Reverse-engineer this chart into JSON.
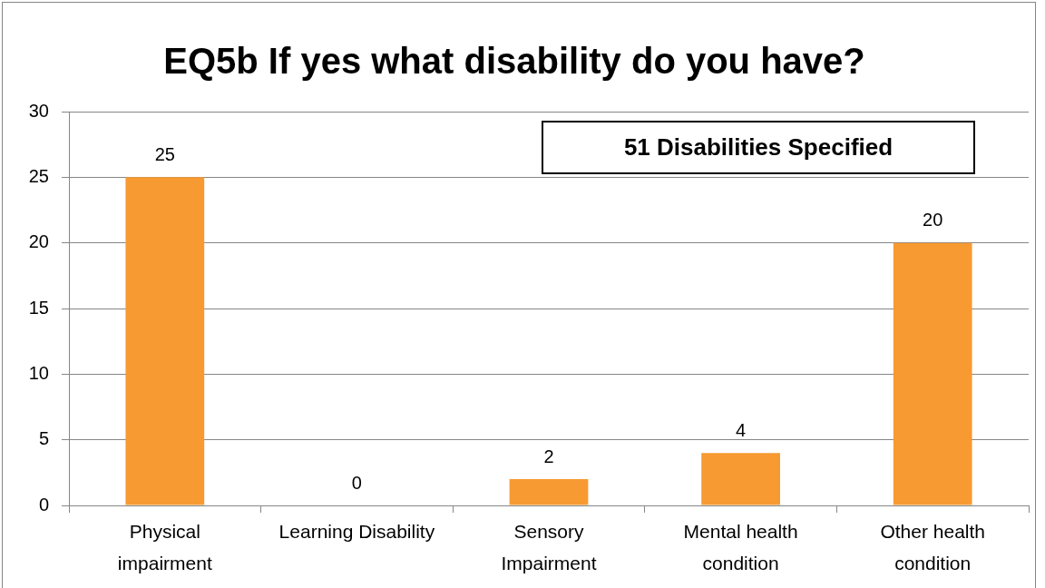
{
  "chart_data": {
    "type": "bar",
    "title": "EQ5b If yes what disability do you have?",
    "categories": [
      "Physical impairment",
      "Learning Disability",
      "Sensory Impairment",
      "Mental health condition",
      "Other health condition"
    ],
    "values": [
      25,
      0,
      2,
      4,
      20
    ],
    "color": "#f79a32",
    "ylim": [
      0,
      30
    ],
    "yticks": [
      0,
      5,
      10,
      15,
      20,
      25,
      30
    ],
    "grid": "y",
    "data_labels": true,
    "annotations": [
      "51 Disabilities Specified"
    ]
  }
}
